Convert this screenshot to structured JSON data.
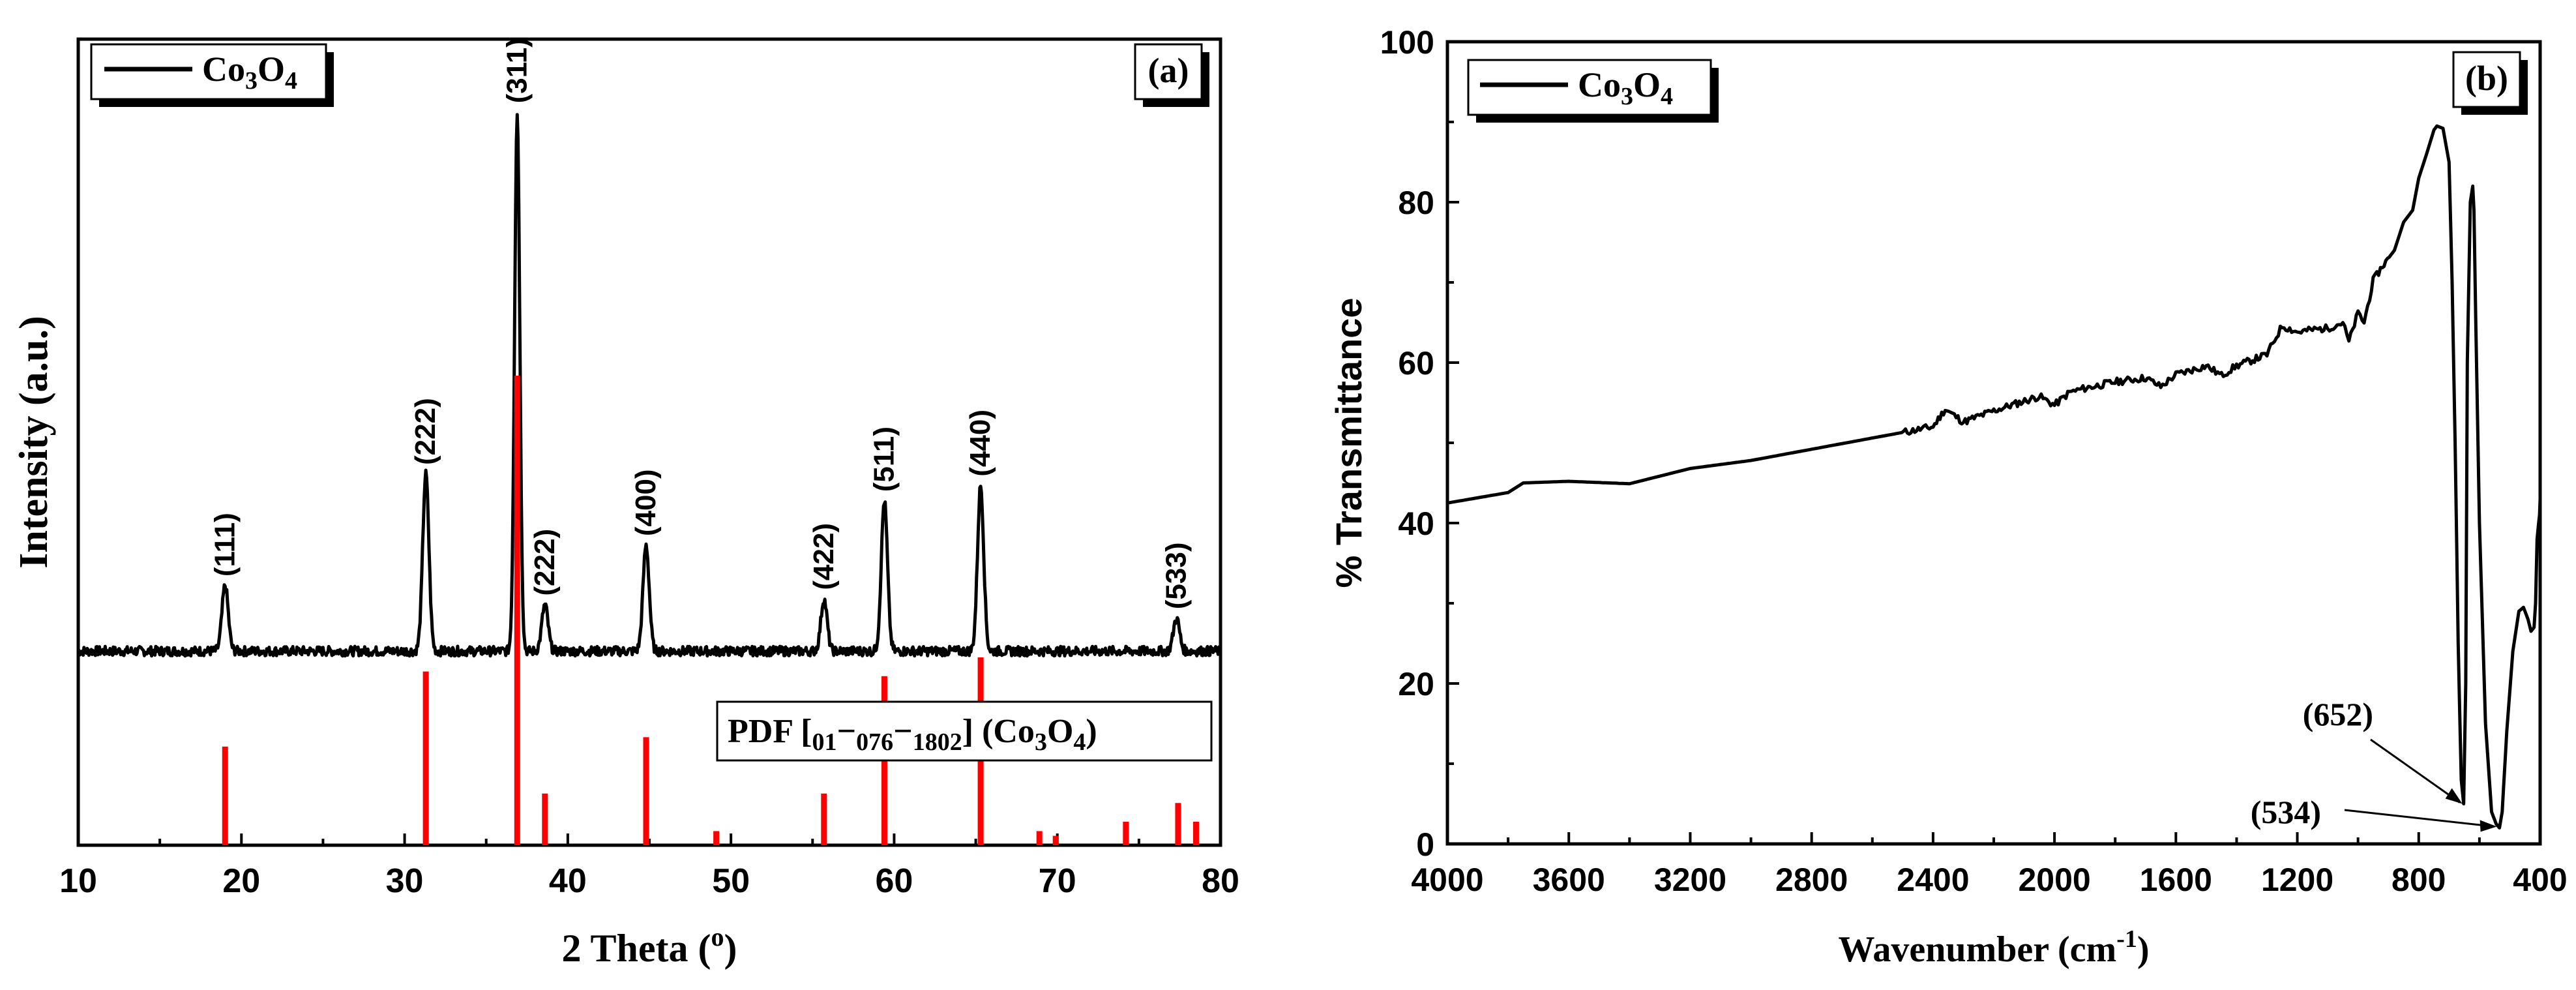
{
  "chart_data": [
    {
      "panel": "a",
      "type": "line",
      "title": "",
      "xlabel": "2 Theta (o)",
      "ylabel": "Intensity (a.u.)",
      "xlim": [
        10,
        80
      ],
      "xticks": [
        10,
        20,
        30,
        40,
        50,
        60,
        70,
        80
      ],
      "yticks_shown": false,
      "panel_label": "(a)",
      "legend": {
        "placement": "top-left",
        "entries": [
          {
            "label": "Co3O4",
            "color": "#000000"
          }
        ]
      },
      "series": [
        {
          "name": "Co3O4",
          "color": "#000000",
          "baseline_intensity": 8,
          "peaks": [
            {
              "two_theta": 19.0,
              "intensity": 34,
              "hkl": "(111)"
            },
            {
              "two_theta": 31.3,
              "intensity": 92,
              "hkl": "(222)"
            },
            {
              "two_theta": 36.9,
              "intensity": 280,
              "hkl": "(311)"
            },
            {
              "two_theta": 38.6,
              "intensity": 24,
              "hkl": "(222)"
            },
            {
              "two_theta": 44.8,
              "intensity": 55,
              "hkl": "(400)"
            },
            {
              "two_theta": 55.7,
              "intensity": 27,
              "hkl": "(422)"
            },
            {
              "two_theta": 59.4,
              "intensity": 78,
              "hkl": "(511)"
            },
            {
              "two_theta": 65.3,
              "intensity": 86,
              "hkl": "(440)"
            },
            {
              "two_theta": 77.3,
              "intensity": 17,
              "hkl": "(533)"
            }
          ]
        }
      ],
      "reference": {
        "name": "PDF [01-076-1802] (Co3O4)",
        "color": "#ff0000",
        "lines": [
          {
            "two_theta": 19.0,
            "intensity": 21
          },
          {
            "two_theta": 31.3,
            "intensity": 37
          },
          {
            "two_theta": 36.9,
            "intensity": 100
          },
          {
            "two_theta": 38.6,
            "intensity": 11
          },
          {
            "two_theta": 44.8,
            "intensity": 23
          },
          {
            "two_theta": 49.1,
            "intensity": 3
          },
          {
            "two_theta": 55.7,
            "intensity": 11
          },
          {
            "two_theta": 59.4,
            "intensity": 36
          },
          {
            "two_theta": 65.3,
            "intensity": 40
          },
          {
            "two_theta": 68.9,
            "intensity": 3
          },
          {
            "two_theta": 69.9,
            "intensity": 2
          },
          {
            "two_theta": 74.2,
            "intensity": 5
          },
          {
            "two_theta": 77.4,
            "intensity": 9
          },
          {
            "two_theta": 78.5,
            "intensity": 5
          }
        ]
      }
    },
    {
      "panel": "b",
      "type": "line",
      "title": "",
      "xlabel": "Wavenumber (cm-1)",
      "ylabel": "% Transmittance",
      "xlim": [
        4000,
        400
      ],
      "ylim": [
        0,
        100
      ],
      "xticks": [
        4000,
        3600,
        3200,
        2800,
        2400,
        2000,
        1600,
        1200,
        800,
        400
      ],
      "yticks": [
        0,
        20,
        40,
        60,
        80,
        100
      ],
      "panel_label": "(b)",
      "legend": {
        "placement": "top-left",
        "entries": [
          {
            "label": "Co3O4",
            "color": "#000000"
          }
        ]
      },
      "annotations": [
        {
          "text": "(652)",
          "x": 652,
          "y": 5
        },
        {
          "text": "(534)",
          "x": 534,
          "y": 2
        }
      ],
      "series": [
        {
          "name": "Co3O4",
          "color": "#000000",
          "x": [
            4000,
            3800,
            3750,
            3600,
            3400,
            3200,
            3000,
            2800,
            2600,
            2400,
            2360,
            2300,
            2200,
            2050,
            2000,
            1950,
            1900,
            1800,
            1700,
            1650,
            1600,
            1500,
            1450,
            1400,
            1300,
            1250,
            1200,
            1150,
            1100,
            1050,
            1030,
            1000,
            980,
            950,
            920,
            880,
            850,
            820,
            800,
            770,
            750,
            740,
            720,
            700,
            690,
            680,
            670,
            660,
            652,
            645,
            640,
            630,
            622,
            618,
            612,
            600,
            580,
            560,
            545,
            534,
            525,
            510,
            490,
            470,
            455,
            440,
            430,
            420,
            415,
            410,
            405,
            402,
            400
          ],
          "y": [
            42.5,
            43.8,
            45.0,
            45.2,
            44.9,
            46.8,
            47.8,
            49.2,
            50.6,
            52.0,
            54.2,
            52.6,
            54.0,
            55.8,
            54.7,
            56.3,
            56.8,
            57.6,
            58.1,
            57.0,
            58.5,
            59.6,
            58.4,
            59.6,
            61.0,
            64.6,
            63.8,
            64.1,
            64.3,
            65.0,
            62.6,
            66.2,
            65.0,
            70.2,
            72.0,
            74.0,
            77.5,
            79.0,
            83.0,
            86.5,
            89.0,
            89.5,
            89.2,
            85.0,
            70.0,
            50.0,
            25.0,
            8.0,
            5.0,
            20.0,
            60.0,
            80.0,
            82.0,
            79.0,
            65.0,
            40.0,
            15.0,
            4.0,
            2.5,
            2.0,
            4.0,
            14.0,
            24.0,
            29.0,
            29.5,
            28.0,
            26.5,
            27.0,
            30.0,
            38.0,
            40.0,
            41.0,
            43.0
          ]
        }
      ]
    }
  ]
}
